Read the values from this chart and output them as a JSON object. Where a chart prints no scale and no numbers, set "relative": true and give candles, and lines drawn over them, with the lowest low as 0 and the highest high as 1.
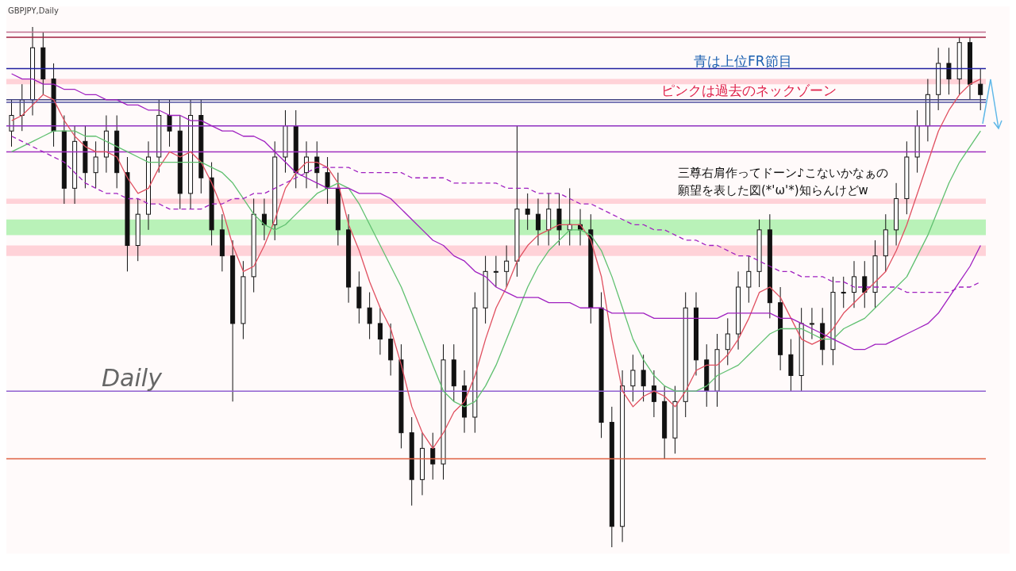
{
  "chart_data": {
    "type": "candlestick",
    "title": "GBPJPY,Daily",
    "relative": true,
    "tick_labels": false,
    "categories": [
      null,
      null,
      null,
      null,
      null,
      null,
      null,
      null,
      null,
      null,
      null,
      null,
      null,
      null,
      null,
      null,
      null,
      null,
      null,
      null,
      null,
      null,
      null,
      null,
      null,
      null,
      null,
      null,
      null,
      null,
      null,
      null,
      null,
      null,
      null,
      null,
      null,
      null,
      null,
      null,
      null,
      null,
      null,
      null,
      null,
      null,
      null,
      null,
      null,
      null,
      null,
      null,
      null,
      null,
      null,
      null,
      null,
      null,
      null,
      null,
      null,
      null,
      null,
      null,
      null,
      null,
      null,
      null,
      null,
      null,
      null,
      null,
      null,
      null,
      null,
      null,
      null,
      null,
      null,
      null,
      null,
      null,
      null,
      null,
      null,
      null,
      null,
      null,
      null,
      null,
      null,
      null,
      null
    ],
    "ohlc": [
      [
        0.8,
        0.86,
        0.77,
        0.83
      ],
      [
        0.83,
        0.89,
        0.8,
        0.86
      ],
      [
        0.86,
        1.0,
        0.83,
        0.96
      ],
      [
        0.96,
        0.99,
        0.87,
        0.9
      ],
      [
        0.9,
        0.93,
        0.77,
        0.8
      ],
      [
        0.8,
        0.83,
        0.66,
        0.69
      ],
      [
        0.69,
        0.81,
        0.66,
        0.78
      ],
      [
        0.78,
        0.81,
        0.69,
        0.72
      ],
      [
        0.72,
        0.78,
        0.69,
        0.75
      ],
      [
        0.75,
        0.83,
        0.72,
        0.8
      ],
      [
        0.8,
        0.83,
        0.69,
        0.72
      ],
      [
        0.72,
        0.75,
        0.53,
        0.58
      ],
      [
        0.58,
        0.67,
        0.55,
        0.64
      ],
      [
        0.64,
        0.78,
        0.61,
        0.75
      ],
      [
        0.75,
        0.86,
        0.72,
        0.83
      ],
      [
        0.83,
        0.86,
        0.77,
        0.8
      ],
      [
        0.8,
        0.83,
        0.65,
        0.68
      ],
      [
        0.68,
        0.86,
        0.65,
        0.83
      ],
      [
        0.83,
        0.86,
        0.68,
        0.71
      ],
      [
        0.71,
        0.74,
        0.58,
        0.61
      ],
      [
        0.61,
        0.64,
        0.53,
        0.56
      ],
      [
        0.56,
        0.59,
        0.28,
        0.43
      ],
      [
        0.43,
        0.55,
        0.4,
        0.52
      ],
      [
        0.52,
        0.67,
        0.49,
        0.64
      ],
      [
        0.64,
        0.67,
        0.59,
        0.62
      ],
      [
        0.62,
        0.78,
        0.59,
        0.75
      ],
      [
        0.75,
        0.84,
        0.72,
        0.81
      ],
      [
        0.81,
        0.84,
        0.69,
        0.72
      ],
      [
        0.72,
        0.78,
        0.69,
        0.75
      ],
      [
        0.75,
        0.78,
        0.69,
        0.72
      ],
      [
        0.72,
        0.75,
        0.66,
        0.69
      ],
      [
        0.69,
        0.72,
        0.58,
        0.61
      ],
      [
        0.61,
        0.64,
        0.47,
        0.5
      ],
      [
        0.5,
        0.53,
        0.43,
        0.46
      ],
      [
        0.46,
        0.49,
        0.4,
        0.43
      ],
      [
        0.43,
        0.46,
        0.37,
        0.4
      ],
      [
        0.4,
        0.43,
        0.33,
        0.36
      ],
      [
        0.36,
        0.39,
        0.19,
        0.22
      ],
      [
        0.22,
        0.25,
        0.08,
        0.13
      ],
      [
        0.13,
        0.22,
        0.1,
        0.19
      ],
      [
        0.19,
        0.22,
        0.13,
        0.16
      ],
      [
        0.16,
        0.39,
        0.13,
        0.36
      ],
      [
        0.36,
        0.39,
        0.28,
        0.31
      ],
      [
        0.31,
        0.34,
        0.22,
        0.25
      ],
      [
        0.25,
        0.49,
        0.22,
        0.46
      ],
      [
        0.46,
        0.56,
        0.43,
        0.53
      ],
      [
        0.53,
        0.56,
        0.5,
        0.53
      ],
      [
        0.53,
        0.58,
        0.5,
        0.55
      ],
      [
        0.55,
        0.81,
        0.52,
        0.65
      ],
      [
        0.65,
        0.68,
        0.61,
        0.64
      ],
      [
        0.64,
        0.67,
        0.58,
        0.61
      ],
      [
        0.61,
        0.68,
        0.58,
        0.65
      ],
      [
        0.65,
        0.68,
        0.58,
        0.61
      ],
      [
        0.61,
        0.69,
        0.58,
        0.62
      ],
      [
        0.62,
        0.65,
        0.58,
        0.61
      ],
      [
        0.61,
        0.64,
        0.43,
        0.46
      ],
      [
        0.46,
        0.49,
        0.21,
        0.24
      ],
      [
        0.24,
        0.27,
        0.0,
        0.04
      ],
      [
        0.04,
        0.34,
        0.01,
        0.31
      ],
      [
        0.31,
        0.37,
        0.28,
        0.34
      ],
      [
        0.34,
        0.37,
        0.28,
        0.31
      ],
      [
        0.31,
        0.34,
        0.25,
        0.28
      ],
      [
        0.28,
        0.31,
        0.17,
        0.21
      ],
      [
        0.21,
        0.31,
        0.18,
        0.28
      ],
      [
        0.28,
        0.49,
        0.25,
        0.46
      ],
      [
        0.46,
        0.49,
        0.33,
        0.36
      ],
      [
        0.36,
        0.39,
        0.27,
        0.3
      ],
      [
        0.3,
        0.41,
        0.27,
        0.38
      ],
      [
        0.38,
        0.44,
        0.35,
        0.41
      ],
      [
        0.41,
        0.53,
        0.38,
        0.5
      ],
      [
        0.5,
        0.56,
        0.47,
        0.53
      ],
      [
        0.53,
        0.63,
        0.5,
        0.61
      ],
      [
        0.61,
        0.64,
        0.44,
        0.47
      ],
      [
        0.47,
        0.5,
        0.34,
        0.37
      ],
      [
        0.37,
        0.4,
        0.3,
        0.33
      ],
      [
        0.33,
        0.46,
        0.3,
        0.43
      ],
      [
        0.43,
        0.46,
        0.4,
        0.43
      ],
      [
        0.43,
        0.46,
        0.35,
        0.38
      ],
      [
        0.38,
        0.52,
        0.35,
        0.49
      ],
      [
        0.49,
        0.52,
        0.46,
        0.49
      ],
      [
        0.49,
        0.55,
        0.46,
        0.52
      ],
      [
        0.52,
        0.55,
        0.46,
        0.49
      ],
      [
        0.49,
        0.59,
        0.46,
        0.56
      ],
      [
        0.56,
        0.64,
        0.53,
        0.61
      ],
      [
        0.61,
        0.7,
        0.58,
        0.67
      ],
      [
        0.67,
        0.78,
        0.64,
        0.75
      ],
      [
        0.75,
        0.84,
        0.72,
        0.81
      ],
      [
        0.81,
        0.9,
        0.78,
        0.87
      ],
      [
        0.87,
        0.96,
        0.84,
        0.93
      ],
      [
        0.93,
        0.96,
        0.87,
        0.9
      ],
      [
        0.9,
        0.98,
        0.87,
        0.97
      ],
      [
        0.97,
        0.98,
        0.86,
        0.89
      ],
      [
        0.89,
        0.92,
        0.84,
        0.87
      ]
    ],
    "series": [
      {
        "type": "line",
        "color": "#e05060",
        "values": [
          0.82,
          0.83,
          0.85,
          0.87,
          0.86,
          0.82,
          0.79,
          0.77,
          0.76,
          0.76,
          0.75,
          0.71,
          0.68,
          0.69,
          0.73,
          0.76,
          0.75,
          0.76,
          0.74,
          0.7,
          0.65,
          0.58,
          0.53,
          0.54,
          0.58,
          0.63,
          0.69,
          0.72,
          0.74,
          0.74,
          0.73,
          0.7,
          0.62,
          0.57,
          0.51,
          0.46,
          0.42,
          0.35,
          0.27,
          0.22,
          0.19,
          0.22,
          0.26,
          0.28,
          0.33,
          0.4,
          0.46,
          0.5,
          0.55,
          0.58,
          0.6,
          0.61,
          0.62,
          0.62,
          0.62,
          0.59,
          0.52,
          0.4,
          0.3,
          0.27,
          0.29,
          0.3,
          0.29,
          0.27,
          0.3,
          0.34,
          0.35,
          0.35,
          0.37,
          0.4,
          0.44,
          0.49,
          0.5,
          0.48,
          0.44,
          0.4,
          0.39,
          0.4,
          0.42,
          0.45,
          0.47,
          0.49,
          0.51,
          0.53,
          0.57,
          0.62,
          0.68,
          0.74,
          0.8,
          0.84,
          0.87,
          0.89,
          0.9
        ]
      },
      {
        "type": "line",
        "color": "#60c070",
        "values": [
          0.76,
          0.77,
          0.78,
          0.79,
          0.8,
          0.8,
          0.8,
          0.79,
          0.79,
          0.78,
          0.77,
          0.76,
          0.75,
          0.74,
          0.74,
          0.74,
          0.74,
          0.74,
          0.74,
          0.73,
          0.72,
          0.7,
          0.67,
          0.64,
          0.62,
          0.61,
          0.62,
          0.64,
          0.66,
          0.68,
          0.69,
          0.7,
          0.69,
          0.66,
          0.62,
          0.58,
          0.54,
          0.5,
          0.45,
          0.4,
          0.35,
          0.3,
          0.28,
          0.27,
          0.28,
          0.31,
          0.35,
          0.4,
          0.45,
          0.5,
          0.54,
          0.57,
          0.59,
          0.61,
          0.61,
          0.6,
          0.57,
          0.52,
          0.46,
          0.4,
          0.36,
          0.33,
          0.31,
          0.3,
          0.3,
          0.3,
          0.31,
          0.33,
          0.34,
          0.35,
          0.37,
          0.39,
          0.41,
          0.42,
          0.42,
          0.42,
          0.41,
          0.4,
          0.4,
          0.42,
          0.43,
          0.44,
          0.46,
          0.48,
          0.5,
          0.52,
          0.56,
          0.6,
          0.65,
          0.7,
          0.74,
          0.77,
          0.8
        ]
      },
      {
        "type": "line",
        "color": "#a020c0",
        "values": [
          0.91,
          0.9,
          0.9,
          0.89,
          0.89,
          0.88,
          0.88,
          0.87,
          0.87,
          0.86,
          0.86,
          0.85,
          0.85,
          0.84,
          0.84,
          0.83,
          0.83,
          0.82,
          0.82,
          0.81,
          0.8,
          0.8,
          0.79,
          0.79,
          0.78,
          0.76,
          0.74,
          0.72,
          0.71,
          0.7,
          0.69,
          0.69,
          0.69,
          0.68,
          0.68,
          0.68,
          0.67,
          0.65,
          0.63,
          0.61,
          0.59,
          0.58,
          0.56,
          0.55,
          0.53,
          0.52,
          0.5,
          0.49,
          0.48,
          0.48,
          0.48,
          0.47,
          0.47,
          0.47,
          0.46,
          0.46,
          0.46,
          0.45,
          0.45,
          0.45,
          0.45,
          0.44,
          0.44,
          0.44,
          0.44,
          0.44,
          0.44,
          0.44,
          0.45,
          0.45,
          0.45,
          0.45,
          0.45,
          0.44,
          0.44,
          0.43,
          0.42,
          0.41,
          0.4,
          0.39,
          0.38,
          0.38,
          0.39,
          0.39,
          0.4,
          0.41,
          0.42,
          0.43,
          0.45,
          0.48,
          0.51,
          0.54,
          0.58
        ]
      },
      {
        "type": "line",
        "color": "#a020c0",
        "line_style": "dashed",
        "values": [
          0.79,
          0.78,
          0.77,
          0.76,
          0.75,
          0.74,
          0.72,
          0.7,
          0.69,
          0.68,
          0.68,
          0.67,
          0.67,
          0.66,
          0.66,
          0.65,
          0.65,
          0.65,
          0.65,
          0.66,
          0.66,
          0.67,
          0.67,
          0.68,
          0.68,
          0.69,
          0.7,
          0.71,
          0.72,
          0.73,
          0.73,
          0.73,
          0.73,
          0.72,
          0.72,
          0.72,
          0.72,
          0.72,
          0.71,
          0.71,
          0.71,
          0.71,
          0.7,
          0.7,
          0.7,
          0.7,
          0.7,
          0.69,
          0.69,
          0.69,
          0.68,
          0.68,
          0.68,
          0.67,
          0.66,
          0.66,
          0.65,
          0.64,
          0.63,
          0.62,
          0.62,
          0.61,
          0.61,
          0.6,
          0.59,
          0.59,
          0.58,
          0.58,
          0.57,
          0.56,
          0.56,
          0.55,
          0.54,
          0.53,
          0.53,
          0.52,
          0.52,
          0.52,
          0.51,
          0.51,
          0.5,
          0.5,
          0.5,
          0.5,
          0.5,
          0.49,
          0.49,
          0.49,
          0.49,
          0.49,
          0.5,
          0.5,
          0.51
        ]
      }
    ],
    "ref_lines": [
      {
        "axis": "y",
        "value": 0.99,
        "color": "#c07090"
      },
      {
        "axis": "y",
        "value": 0.98,
        "color": "#a02040"
      },
      {
        "axis": "y",
        "value": 0.92,
        "color": "#2020a0"
      },
      {
        "axis": "y",
        "value": 0.86,
        "color": "#404080"
      },
      {
        "axis": "y",
        "value": 0.855,
        "color": "#5050a0"
      },
      {
        "axis": "y",
        "value": 0.81,
        "color": "#9030c0"
      },
      {
        "axis": "y",
        "value": 0.76,
        "color": "#a030c0"
      },
      {
        "axis": "y",
        "value": 0.3,
        "color": "#9060d0"
      },
      {
        "axis": "y",
        "value": 0.17,
        "color": "#e06040"
      }
    ],
    "bands": [
      {
        "axis": "y",
        "from": 0.89,
        "to": 0.9,
        "color": "#ffc8d0"
      },
      {
        "axis": "y",
        "from": 0.66,
        "to": 0.67,
        "color": "#ffc8d0"
      },
      {
        "axis": "y",
        "from": 0.56,
        "to": 0.58,
        "color": "#ffc8d0"
      },
      {
        "axis": "y",
        "from": 0.6,
        "to": 0.63,
        "color": "#a8f0a8"
      }
    ],
    "annotations": [
      "青は上位FR節目",
      "ピンクは過去のネックゾーン",
      "三尊右肩作ってドーン♪こないかなぁの",
      "願望を表した図(*'ω'*)知らんけどw",
      "Daily"
    ]
  }
}
